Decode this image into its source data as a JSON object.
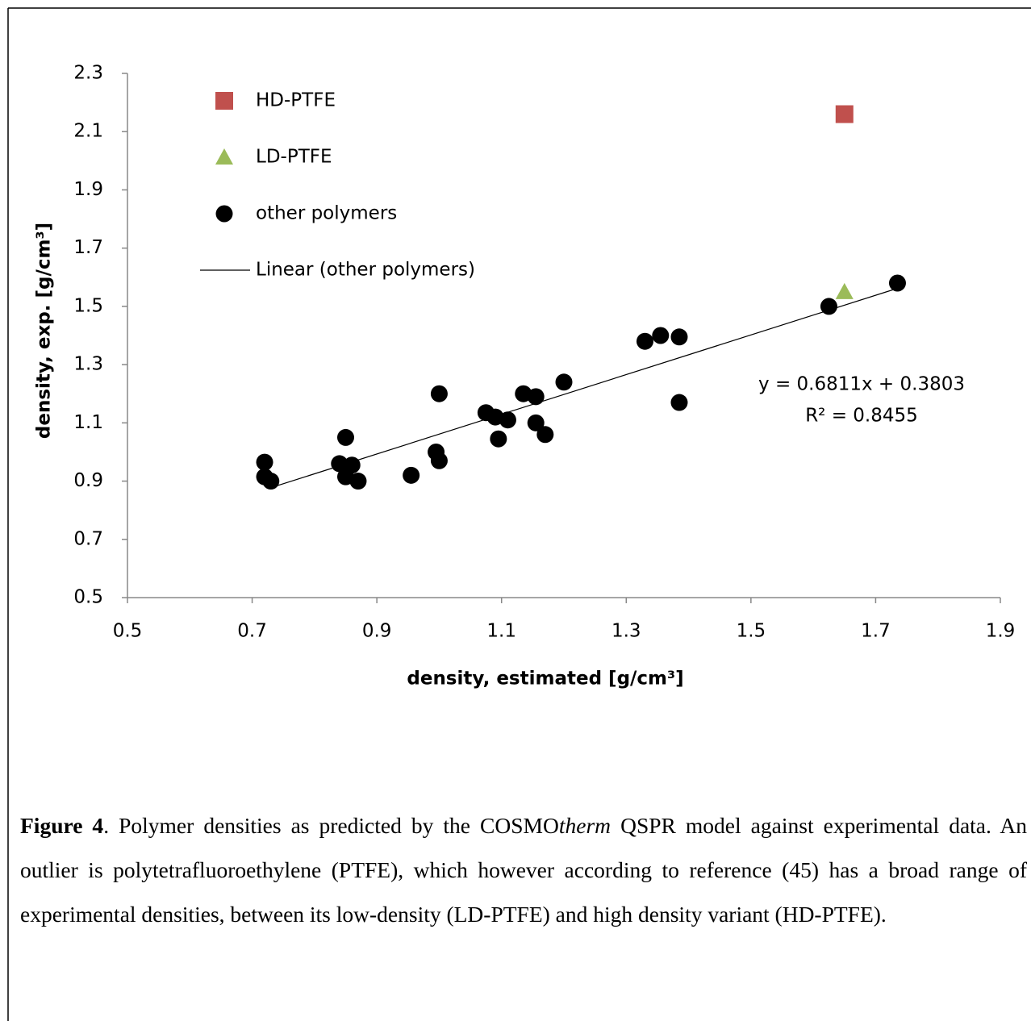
{
  "chart_data": {
    "type": "scatter",
    "xlabel": "density, estimated [g/cm³]",
    "ylabel": "density, exp. [g/cm³]",
    "xlim": [
      0.5,
      1.9
    ],
    "ylim": [
      0.5,
      2.3
    ],
    "xticks": [
      0.5,
      0.7,
      0.9,
      1.1,
      1.3,
      1.5,
      1.7,
      1.9
    ],
    "yticks": [
      0.5,
      0.7,
      0.9,
      1.1,
      1.3,
      1.5,
      1.7,
      1.9,
      2.1,
      2.3
    ],
    "grid": false,
    "legend": "top-left",
    "annotations": [
      "y = 0.6811x + 0.3803",
      "R² = 0.8455"
    ],
    "series": [
      {
        "name": "HD-PTFE",
        "color": "#c0504d",
        "marker": "square",
        "x": [
          1.65
        ],
        "values": [
          2.16
        ]
      },
      {
        "name": "LD-PTFE",
        "color": "#9bbb59",
        "marker": "triangle",
        "x": [
          1.65
        ],
        "values": [
          1.55
        ]
      },
      {
        "name": "other polymers",
        "color": "#000000",
        "marker": "circle",
        "x": [
          0.72,
          0.72,
          0.73,
          0.84,
          0.85,
          0.85,
          0.86,
          0.87,
          0.955,
          0.995,
          1.0,
          1.0,
          1.075,
          1.09,
          1.095,
          1.11,
          1.135,
          1.155,
          1.155,
          1.17,
          1.2,
          1.33,
          1.355,
          1.385,
          1.385,
          1.625,
          1.735
        ],
        "values": [
          0.965,
          0.915,
          0.9,
          0.96,
          1.05,
          0.915,
          0.955,
          0.9,
          0.92,
          1.0,
          1.2,
          0.97,
          1.135,
          1.12,
          1.045,
          1.11,
          1.2,
          1.19,
          1.1,
          1.06,
          1.24,
          1.38,
          1.4,
          1.395,
          1.17,
          1.5,
          1.58
        ]
      },
      {
        "name": "Linear (other polymers)",
        "color": "#000000",
        "marker": "line",
        "x": [
          0.725,
          1.735
        ],
        "values": [
          0.874,
          1.562
        ]
      }
    ]
  },
  "caption": {
    "label": "Figure 4",
    "parts": [
      ". Polymer densities as predicted by the COSMO",
      "therm",
      " QSPR model against experimental data. An outlier is polytetrafluoroethylene (PTFE), which however according to reference (45) has a broad range of experimental densities, between its low-density (LD-PTFE) and high density variant (HD-PTFE)."
    ]
  }
}
